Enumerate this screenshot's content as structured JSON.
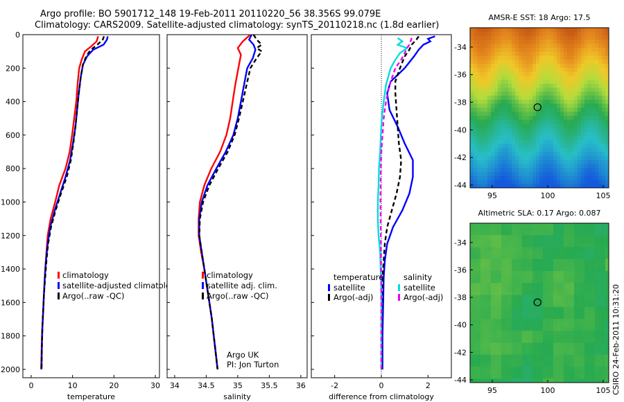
{
  "header": {
    "line1": "Argo profile: BO 5901712_148 19-Feb-2011 20110220_56 38.356S 99.079E",
    "line2": "Climatology: CARS2009. Satellite-adjusted climatology: synTS_20110218.nc (1.8d earlier)"
  },
  "side_label": "CSIRO 24-Feb-2011 10:31:20",
  "chart_data": [
    {
      "id": "temperature",
      "type": "line",
      "xlabel": "temperature",
      "xlim": [
        -2,
        31
      ],
      "ylim": [
        0,
        2050
      ],
      "y_reversed": true,
      "xticks": [
        0,
        10,
        20,
        30
      ],
      "yticks": [
        0,
        200,
        400,
        600,
        800,
        1000,
        1200,
        1400,
        1600,
        1800,
        2000
      ],
      "legend": [
        "climatology",
        "satellite-adjusted climatology",
        "Argo(..raw -QC)"
      ],
      "series": [
        {
          "name": "climatology",
          "color": "#ff0000",
          "dash": "",
          "points": [
            [
              16.2,
              10
            ],
            [
              15.8,
              40
            ],
            [
              14.5,
              70
            ],
            [
              13,
              100
            ],
            [
              12.2,
              150
            ],
            [
              11.6,
              200
            ],
            [
              11.2,
              300
            ],
            [
              10.9,
              400
            ],
            [
              10.4,
              500
            ],
            [
              9.9,
              600
            ],
            [
              9.3,
              700
            ],
            [
              8.3,
              800
            ],
            [
              6.8,
              900
            ],
            [
              5.8,
              1000
            ],
            [
              4.7,
              1100
            ],
            [
              4,
              1200
            ],
            [
              3.7,
              1300
            ],
            [
              3.4,
              1400
            ],
            [
              3.2,
              1500
            ],
            [
              3,
              1600
            ],
            [
              2.8,
              1700
            ],
            [
              2.6,
              1800
            ],
            [
              2.5,
              1900
            ],
            [
              2.4,
              2000
            ]
          ]
        },
        {
          "name": "satellite-adjusted climatology",
          "color": "#0000ff",
          "dash": "",
          "points": [
            [
              18.5,
              10
            ],
            [
              18.3,
              30
            ],
            [
              17.5,
              60
            ],
            [
              15,
              90
            ],
            [
              13.5,
              130
            ],
            [
              12.5,
              180
            ],
            [
              12,
              250
            ],
            [
              11.5,
              350
            ],
            [
              11.1,
              450
            ],
            [
              10.7,
              550
            ],
            [
              10.1,
              650
            ],
            [
              9.4,
              750
            ],
            [
              8.3,
              850
            ],
            [
              7,
              950
            ],
            [
              5.7,
              1050
            ],
            [
              4.6,
              1150
            ],
            [
              4,
              1250
            ],
            [
              3.6,
              1350
            ],
            [
              3.3,
              1450
            ],
            [
              3.1,
              1550
            ],
            [
              2.9,
              1650
            ],
            [
              2.7,
              1750
            ],
            [
              2.6,
              1850
            ],
            [
              2.5,
              2000
            ]
          ]
        },
        {
          "name": "Argo(..raw -QC)",
          "color": "#000000",
          "dash": "6,4",
          "points": [
            [
              17.6,
              10
            ],
            [
              17.3,
              30
            ],
            [
              16,
              60
            ],
            [
              14.4,
              90
            ],
            [
              13.3,
              130
            ],
            [
              12.5,
              180
            ],
            [
              12,
              250
            ],
            [
              11.5,
              350
            ],
            [
              11.1,
              450
            ],
            [
              10.7,
              550
            ],
            [
              10.2,
              650
            ],
            [
              9.6,
              750
            ],
            [
              8.6,
              850
            ],
            [
              7.2,
              950
            ],
            [
              5.9,
              1050
            ],
            [
              4.8,
              1150
            ],
            [
              4.1,
              1250
            ],
            [
              3.7,
              1350
            ],
            [
              3.4,
              1450
            ],
            [
              3.1,
              1550
            ],
            [
              2.9,
              1650
            ],
            [
              2.7,
              1750
            ],
            [
              2.6,
              1850
            ],
            [
              2.5,
              2000
            ]
          ]
        }
      ]
    },
    {
      "id": "salinity",
      "type": "line",
      "xlabel": "salinity",
      "xlim": [
        33.88,
        36.1
      ],
      "ylim": [
        0,
        2050
      ],
      "y_reversed": true,
      "xticks": [
        34,
        34.5,
        35,
        35.5,
        36
      ],
      "legend": [
        "climatology",
        "satellite adj. clim.",
        "Argo(..raw -QC)"
      ],
      "annotation": [
        "Argo UK",
        "PI: Jon Turton"
      ],
      "series": [
        {
          "name": "climatology",
          "color": "#ff0000",
          "dash": "",
          "points": [
            [
              35.2,
              0
            ],
            [
              35.08,
              40
            ],
            [
              35,
              80
            ],
            [
              35.05,
              120
            ],
            [
              35.02,
              180
            ],
            [
              34.96,
              300
            ],
            [
              34.92,
              400
            ],
            [
              34.88,
              500
            ],
            [
              34.82,
              600
            ],
            [
              34.72,
              700
            ],
            [
              34.58,
              800
            ],
            [
              34.47,
              900
            ],
            [
              34.4,
              1000
            ],
            [
              34.38,
              1100
            ],
            [
              34.38,
              1200
            ],
            [
              34.42,
              1300
            ],
            [
              34.47,
              1400
            ],
            [
              34.51,
              1500
            ],
            [
              34.55,
              1600
            ],
            [
              34.59,
              1700
            ],
            [
              34.62,
              1800
            ],
            [
              34.65,
              1900
            ],
            [
              34.68,
              2000
            ]
          ]
        },
        {
          "name": "satellite adj. clim.",
          "color": "#0000ff",
          "dash": "",
          "points": [
            [
              35.22,
              0
            ],
            [
              35.18,
              30
            ],
            [
              35.25,
              60
            ],
            [
              35.28,
              90
            ],
            [
              35.24,
              140
            ],
            [
              35.15,
              200
            ],
            [
              35.1,
              300
            ],
            [
              35.05,
              400
            ],
            [
              35,
              500
            ],
            [
              34.93,
              600
            ],
            [
              34.81,
              700
            ],
            [
              34.66,
              800
            ],
            [
              34.52,
              900
            ],
            [
              34.43,
              1000
            ],
            [
              34.39,
              1100
            ],
            [
              34.39,
              1200
            ],
            [
              34.43,
              1300
            ],
            [
              34.47,
              1400
            ],
            [
              34.51,
              1500
            ],
            [
              34.55,
              1600
            ],
            [
              34.59,
              1700
            ],
            [
              34.62,
              1800
            ],
            [
              34.65,
              1900
            ],
            [
              34.68,
              2000
            ]
          ]
        },
        {
          "name": "Argo(..raw -QC)",
          "color": "#000000",
          "dash": "6,4",
          "points": [
            [
              35.25,
              0
            ],
            [
              35.3,
              30
            ],
            [
              35.38,
              60
            ],
            [
              35.3,
              80
            ],
            [
              35.38,
              100
            ],
            [
              35.3,
              140
            ],
            [
              35.2,
              200
            ],
            [
              35.14,
              300
            ],
            [
              35.08,
              400
            ],
            [
              35.02,
              500
            ],
            [
              34.95,
              600
            ],
            [
              34.84,
              700
            ],
            [
              34.69,
              800
            ],
            [
              34.55,
              900
            ],
            [
              34.45,
              1000
            ],
            [
              34.4,
              1100
            ],
            [
              34.39,
              1200
            ],
            [
              34.43,
              1300
            ],
            [
              34.47,
              1400
            ],
            [
              34.51,
              1500
            ],
            [
              34.55,
              1600
            ],
            [
              34.59,
              1700
            ],
            [
              34.62,
              1800
            ],
            [
              34.65,
              1900
            ],
            [
              34.68,
              2000
            ]
          ]
        }
      ]
    },
    {
      "id": "difference",
      "type": "line",
      "xlabel": "difference from climatology",
      "xlim": [
        -3,
        3
      ],
      "ylim": [
        0,
        2050
      ],
      "y_reversed": true,
      "xticks": [
        -2,
        0,
        2
      ],
      "legend_temperature": {
        "title": "temperature",
        "items": [
          "satellite",
          "Argo(-adj)"
        ]
      },
      "legend_salinity": {
        "title": "salinity",
        "items": [
          "satellite",
          "Argo(-adj)"
        ]
      },
      "series": [
        {
          "name": "temperature satellite",
          "color": "#0000ff",
          "dash": "",
          "points": [
            [
              2.3,
              10
            ],
            [
              2,
              25
            ],
            [
              2.1,
              40
            ],
            [
              1.8,
              60
            ],
            [
              1.6,
              90
            ],
            [
              1.4,
              130
            ],
            [
              1,
              200
            ],
            [
              0.4,
              280
            ],
            [
              0.25,
              350
            ],
            [
              0.35,
              450
            ],
            [
              0.7,
              550
            ],
            [
              1,
              650
            ],
            [
              1.35,
              750
            ],
            [
              1.35,
              850
            ],
            [
              1.2,
              950
            ],
            [
              0.9,
              1050
            ],
            [
              0.5,
              1150
            ],
            [
              0.25,
              1250
            ],
            [
              0.15,
              1350
            ],
            [
              0.1,
              1450
            ],
            [
              0.08,
              1600
            ],
            [
              0.05,
              1800
            ],
            [
              0.05,
              2000
            ]
          ]
        },
        {
          "name": "temperature Argo(-adj)",
          "color": "#000000",
          "dash": "6,4",
          "points": [
            [
              1.6,
              10
            ],
            [
              1.5,
              30
            ],
            [
              1.3,
              60
            ],
            [
              1.2,
              90
            ],
            [
              1,
              130
            ],
            [
              0.8,
              200
            ],
            [
              0.6,
              280
            ],
            [
              0.6,
              350
            ],
            [
              0.65,
              450
            ],
            [
              0.7,
              550
            ],
            [
              0.75,
              650
            ],
            [
              0.85,
              750
            ],
            [
              0.8,
              850
            ],
            [
              0.65,
              950
            ],
            [
              0.45,
              1050
            ],
            [
              0.25,
              1150
            ],
            [
              0.15,
              1250
            ],
            [
              0.1,
              1350
            ],
            [
              0.05,
              1450
            ],
            [
              0.03,
              1600
            ],
            [
              0.02,
              1800
            ],
            [
              0.02,
              2000
            ]
          ]
        },
        {
          "name": "salinity satellite",
          "color": "#00dddd",
          "dash": "",
          "points": [
            [
              0.7,
              20
            ],
            [
              0.9,
              40
            ],
            [
              0.7,
              60
            ],
            [
              1.1,
              80
            ],
            [
              0.8,
              110
            ],
            [
              0.6,
              150
            ],
            [
              0.4,
              200
            ],
            [
              0.2,
              300
            ],
            [
              0.1,
              400
            ],
            [
              0.02,
              500
            ],
            [
              -0.02,
              600
            ],
            [
              -0.05,
              700
            ],
            [
              -0.1,
              800
            ],
            [
              -0.12,
              900
            ],
            [
              -0.15,
              1000
            ],
            [
              -0.15,
              1100
            ],
            [
              -0.12,
              1200
            ],
            [
              -0.05,
              1300
            ],
            [
              -0.03,
              1400
            ],
            [
              -0.01,
              1500
            ],
            [
              0.0,
              1600
            ],
            [
              0.0,
              1800
            ],
            [
              0.0,
              2000
            ]
          ]
        },
        {
          "name": "salinity Argo(-adj)",
          "color": "#ee00ee",
          "dash": "6,4",
          "points": [
            [
              1.3,
              20
            ],
            [
              1.25,
              40
            ],
            [
              1.2,
              60
            ],
            [
              1.1,
              80
            ],
            [
              1.0,
              110
            ],
            [
              0.85,
              150
            ],
            [
              0.6,
              200
            ],
            [
              0.35,
              300
            ],
            [
              0.2,
              400
            ],
            [
              0.1,
              500
            ],
            [
              0.05,
              600
            ],
            [
              0.0,
              700
            ],
            [
              -0.02,
              800
            ],
            [
              -0.03,
              900
            ],
            [
              -0.04,
              1000
            ],
            [
              -0.03,
              1100
            ],
            [
              -0.02,
              1200
            ],
            [
              -0.01,
              1400
            ],
            [
              0.0,
              1600
            ],
            [
              0.0,
              1800
            ],
            [
              0.0,
              2000
            ]
          ]
        }
      ]
    }
  ],
  "maps": [
    {
      "id": "sst",
      "title": "AMSR-E SST: 18 Argo: 17.5",
      "yticks": [
        -34,
        -36,
        -38,
        -40,
        -42,
        -44
      ],
      "xticks": [
        95,
        100,
        105
      ],
      "marker": {
        "lon": 99.08,
        "lat": -38.36
      },
      "lon_range": [
        93,
        105.5
      ],
      "lat_range": [
        -44.2,
        -32.6
      ]
    },
    {
      "id": "sla",
      "title": "Altimetric SLA: 0.17 Argo: 0.087",
      "yticks": [
        -34,
        -36,
        -38,
        -40,
        -42,
        -44
      ],
      "xticks": [
        95,
        100,
        105
      ],
      "marker": {
        "lon": 99.08,
        "lat": -38.36
      },
      "lon_range": [
        93,
        105.5
      ],
      "lat_range": [
        -44.2,
        -32.6
      ]
    }
  ]
}
